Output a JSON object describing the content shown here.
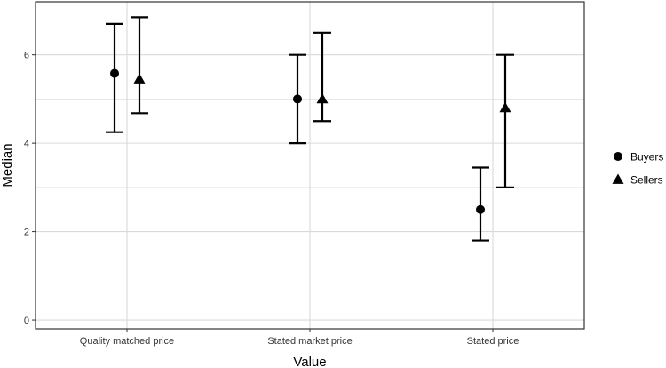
{
  "chart_data": {
    "type": "scatter",
    "title": "",
    "xlabel": "Value",
    "ylabel": "Median",
    "categories": [
      "Quality matched price",
      "Stated market price",
      "Stated price"
    ],
    "ylim": [
      -0.2,
      7.2
    ],
    "yticks": [
      0,
      2,
      4,
      6
    ],
    "grid": true,
    "legend_position": "right",
    "series": [
      {
        "name": "Buyers",
        "marker": "circle",
        "values": [
          5.58,
          5.0,
          2.5
        ],
        "lower": [
          4.25,
          4.0,
          1.8
        ],
        "upper": [
          6.7,
          6.0,
          3.45
        ]
      },
      {
        "name": "Sellers",
        "marker": "triangle",
        "values": [
          5.45,
          5.0,
          4.8
        ],
        "lower": [
          4.68,
          4.5,
          3.0
        ],
        "upper": [
          6.85,
          6.5,
          6.0
        ]
      }
    ],
    "colors": {
      "marks": "#000000",
      "grid": "#d9d9d9",
      "panel_border": "#333333"
    }
  }
}
